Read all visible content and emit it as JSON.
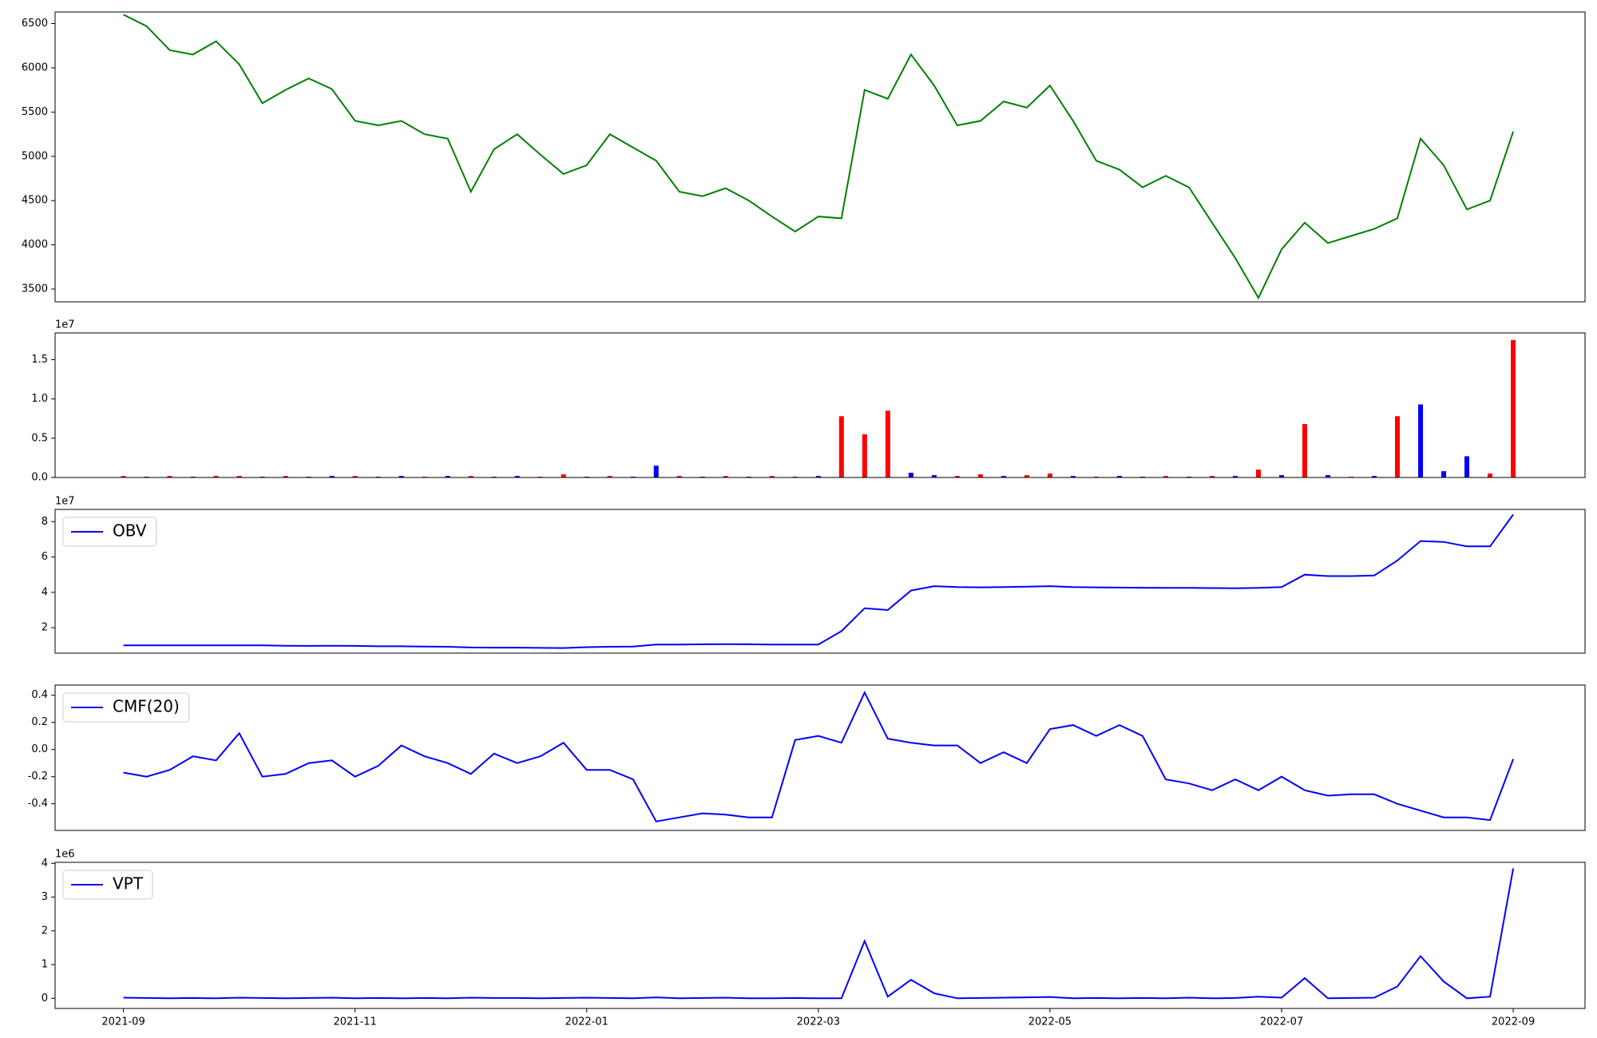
{
  "chart_data": [
    {
      "type": "line",
      "color": "green",
      "x": [
        0,
        0.2,
        0.4,
        0.6,
        0.8,
        1,
        1.2,
        1.4,
        1.6,
        1.8,
        2,
        2.2,
        2.4,
        2.6,
        2.8,
        3,
        3.2,
        3.4,
        3.6,
        3.8,
        4,
        4.2,
        4.4,
        4.6,
        4.8,
        5,
        5.2,
        5.4,
        5.6,
        5.8,
        6,
        6.2,
        6.4,
        6.6,
        6.8,
        7,
        7.2,
        7.4,
        7.6,
        7.8,
        8,
        8.2,
        8.4,
        8.6,
        8.8,
        9,
        9.2,
        9.4,
        9.6,
        9.8,
        10,
        10.2,
        10.4,
        10.6,
        10.8,
        11,
        11.2,
        11.4,
        11.6,
        11.8,
        12
      ],
      "values": [
        6600,
        6470,
        6200,
        6150,
        6300,
        6040,
        5600,
        5750,
        5880,
        5760,
        5400,
        5350,
        5400,
        5250,
        5200,
        4600,
        5080,
        5250,
        5020,
        4800,
        4900,
        5250,
        5100,
        4950,
        4600,
        4550,
        4640,
        4500,
        4320,
        4150,
        4320,
        4300,
        5750,
        5650,
        6150,
        5800,
        5350,
        5400,
        5620,
        5550,
        5800,
        5400,
        4950,
        4850,
        4650,
        4780,
        4650,
        4250,
        3850,
        3400,
        3950,
        4250,
        4020,
        4100,
        4180,
        4300,
        5200,
        4900,
        4400,
        4500,
        5280
      ],
      "xlim": [
        -0.59,
        12.62
      ],
      "ylim": [
        3356,
        6631
      ],
      "yticks": [
        3500,
        4000,
        4500,
        5000,
        5500,
        6000,
        6500
      ]
    },
    {
      "type": "bar",
      "offset_label": "1e7",
      "x": [
        0,
        0.2,
        0.4,
        0.6,
        0.8,
        1,
        1.2,
        1.4,
        1.6,
        1.8,
        2,
        2.2,
        2.4,
        2.6,
        2.8,
        3,
        3.2,
        3.4,
        3.6,
        3.8,
        4,
        4.2,
        4.4,
        4.6,
        4.8,
        5,
        5.2,
        5.4,
        5.6,
        5.8,
        6,
        6.2,
        6.4,
        6.6,
        6.8,
        7,
        7.2,
        7.4,
        7.6,
        7.8,
        8,
        8.2,
        8.4,
        8.6,
        8.8,
        9,
        9.2,
        9.4,
        9.6,
        9.8,
        10,
        10.2,
        10.4,
        10.6,
        10.8,
        11,
        11.2,
        11.4,
        11.6,
        11.8,
        12
      ],
      "values": [
        0.02,
        0.01,
        0.02,
        0.01,
        0.02,
        0.02,
        0.01,
        0.02,
        0.01,
        0.02,
        0.02,
        0.01,
        0.02,
        0.01,
        0.02,
        0.02,
        0.01,
        0.02,
        0.01,
        0.04,
        0.01,
        0.02,
        0.01,
        0.15,
        0.02,
        0.01,
        0.02,
        0.01,
        0.02,
        0.01,
        0.02,
        0.78,
        0.55,
        0.85,
        0.06,
        0.03,
        0.02,
        0.04,
        0.02,
        0.03,
        0.05,
        0.02,
        0.01,
        0.02,
        0.01,
        0.02,
        0.01,
        0.02,
        0.02,
        0.1,
        0.03,
        0.68,
        0.03,
        0.01,
        0.02,
        0.78,
        0.93,
        0.08,
        0.27,
        0.05,
        1.75
      ],
      "bar_colors": [
        "red",
        "blue",
        "red",
        "blue",
        "red",
        "red",
        "blue",
        "red",
        "blue",
        "blue",
        "red",
        "blue",
        "blue",
        "red",
        "blue",
        "red",
        "blue",
        "blue",
        "red",
        "red",
        "blue",
        "red",
        "blue",
        "blue",
        "red",
        "blue",
        "red",
        "blue",
        "red",
        "blue",
        "blue",
        "red",
        "red",
        "red",
        "blue",
        "blue",
        "red",
        "red",
        "blue",
        "red",
        "red",
        "blue",
        "red",
        "blue",
        "blue",
        "red",
        "blue",
        "red",
        "blue",
        "red",
        "blue",
        "red",
        "blue",
        "red",
        "blue",
        "red",
        "blue",
        "blue",
        "blue",
        "red",
        "red"
      ],
      "xlim": [
        -0.59,
        12.62
      ],
      "ylim": [
        0,
        1.84
      ],
      "yticks": [
        {
          "value": 0,
          "label": "0.0"
        },
        0.5,
        {
          "value": 1,
          "label": "1.0"
        },
        1.5
      ]
    },
    {
      "type": "line",
      "offset_label": "1e7",
      "legend": "upper left",
      "x": [
        0,
        0.2,
        0.4,
        0.6,
        0.8,
        1,
        1.2,
        1.4,
        1.6,
        1.8,
        2,
        2.2,
        2.4,
        2.6,
        2.8,
        3,
        3.2,
        3.4,
        3.6,
        3.8,
        4,
        4.2,
        4.4,
        4.6,
        4.8,
        5,
        5.2,
        5.4,
        5.6,
        5.8,
        6,
        6.2,
        6.4,
        6.6,
        6.8,
        7,
        7.2,
        7.4,
        7.6,
        7.8,
        8,
        8.2,
        8.4,
        8.6,
        8.8,
        9,
        9.2,
        9.4,
        9.6,
        9.8,
        10,
        10.2,
        10.4,
        10.6,
        10.8,
        11,
        11.2,
        11.4,
        11.6,
        11.8,
        12
      ],
      "series": [
        {
          "name": "OBV",
          "color": "blue",
          "values": [
            1.0,
            1.0,
            1.0,
            1.0,
            1.0,
            1.0,
            1.0,
            0.98,
            0.97,
            0.98,
            0.97,
            0.95,
            0.95,
            0.93,
            0.92,
            0.88,
            0.87,
            0.87,
            0.86,
            0.85,
            0.9,
            0.92,
            0.93,
            1.05,
            1.05,
            1.06,
            1.07,
            1.06,
            1.05,
            1.05,
            1.05,
            1.8,
            3.1,
            3.0,
            4.1,
            4.35,
            4.3,
            4.28,
            4.3,
            4.32,
            4.35,
            4.3,
            4.28,
            4.27,
            4.26,
            4.25,
            4.25,
            4.24,
            4.23,
            4.25,
            4.3,
            5.0,
            4.92,
            4.92,
            4.95,
            5.8,
            6.9,
            6.85,
            6.6,
            6.6,
            8.4
          ]
        }
      ],
      "xlim": [
        -0.59,
        12.62
      ],
      "ylim": [
        0.56,
        8.69
      ],
      "yticks": [
        2,
        4,
        6,
        8
      ]
    },
    {
      "type": "line",
      "legend": "upper left",
      "x": [
        0,
        0.2,
        0.4,
        0.6,
        0.8,
        1,
        1.2,
        1.4,
        1.6,
        1.8,
        2,
        2.2,
        2.4,
        2.6,
        2.8,
        3,
        3.2,
        3.4,
        3.6,
        3.8,
        4,
        4.2,
        4.4,
        4.6,
        4.8,
        5,
        5.2,
        5.4,
        5.6,
        5.8,
        6,
        6.2,
        6.4,
        6.6,
        6.8,
        7,
        7.2,
        7.4,
        7.6,
        7.8,
        8,
        8.2,
        8.4,
        8.6,
        8.8,
        9,
        9.2,
        9.4,
        9.6,
        9.8,
        10,
        10.2,
        10.4,
        10.6,
        10.8,
        11,
        11.2,
        11.4,
        11.6,
        11.8,
        12
      ],
      "series": [
        {
          "name": "CMF(20)",
          "color": "blue",
          "values": [
            -0.17,
            -0.2,
            -0.15,
            -0.05,
            -0.08,
            0.12,
            -0.2,
            -0.18,
            -0.1,
            -0.08,
            -0.2,
            -0.12,
            0.03,
            -0.05,
            -0.1,
            -0.18,
            -0.03,
            -0.1,
            -0.05,
            0.05,
            -0.15,
            -0.15,
            -0.22,
            -0.53,
            -0.5,
            -0.47,
            -0.48,
            -0.5,
            -0.5,
            0.07,
            0.1,
            0.05,
            0.42,
            0.08,
            0.05,
            0.03,
            0.03,
            -0.1,
            -0.02,
            -0.1,
            0.15,
            0.18,
            0.1,
            0.18,
            0.1,
            -0.22,
            -0.25,
            -0.3,
            -0.22,
            -0.3,
            -0.2,
            -0.3,
            -0.34,
            -0.33,
            -0.33,
            -0.4,
            -0.45,
            -0.5,
            -0.5,
            -0.52,
            -0.07
          ]
        }
      ],
      "xlim": [
        -0.59,
        12.62
      ],
      "ylim": [
        -0.596,
        0.475
      ],
      "yticks": [
        -0.4,
        -0.2,
        {
          "value": 0,
          "label": "0.0"
        },
        0.2,
        0.4
      ]
    },
    {
      "type": "line",
      "offset_label": "1e6",
      "legend": "upper left",
      "x": [
        0,
        0.2,
        0.4,
        0.6,
        0.8,
        1,
        1.2,
        1.4,
        1.6,
        1.8,
        2,
        2.2,
        2.4,
        2.6,
        2.8,
        3,
        3.2,
        3.4,
        3.6,
        3.8,
        4,
        4.2,
        4.4,
        4.6,
        4.8,
        5,
        5.2,
        5.4,
        5.6,
        5.8,
        6,
        6.2,
        6.4,
        6.6,
        6.8,
        7,
        7.2,
        7.4,
        7.6,
        7.8,
        8,
        8.2,
        8.4,
        8.6,
        8.8,
        9,
        9.2,
        9.4,
        9.6,
        9.8,
        10,
        10.2,
        10.4,
        10.6,
        10.8,
        11,
        11.2,
        11.4,
        11.6,
        11.8,
        12
      ],
      "series": [
        {
          "name": "VPT",
          "color": "blue",
          "values": [
            0.02,
            0.01,
            0.0,
            0.01,
            0.0,
            0.02,
            0.01,
            0.0,
            0.01,
            0.02,
            0.0,
            0.01,
            0.0,
            0.01,
            0.0,
            0.02,
            0.01,
            0.01,
            0.0,
            0.01,
            0.02,
            0.01,
            0.0,
            0.03,
            0.0,
            0.01,
            0.02,
            0.0,
            0.0,
            0.01,
            0.0,
            0.0,
            1.7,
            0.05,
            0.55,
            0.15,
            0.0,
            0.01,
            0.02,
            0.03,
            0.04,
            0.0,
            0.01,
            0.0,
            0.01,
            0.0,
            0.02,
            0.0,
            0.01,
            0.05,
            0.02,
            0.6,
            0.0,
            0.01,
            0.02,
            0.35,
            1.25,
            0.5,
            0.0,
            0.05,
            3.85
          ]
        }
      ],
      "xlim": [
        -0.59,
        12.62
      ],
      "ylim": [
        -0.3,
        4.03
      ],
      "yticks": [
        0,
        1,
        2,
        3,
        4
      ],
      "xticks": [
        {
          "value": 0,
          "label": "2021-09"
        },
        {
          "value": 2,
          "label": "2021-11"
        },
        {
          "value": 4,
          "label": "2022-01"
        },
        {
          "value": 6,
          "label": "2022-03"
        },
        {
          "value": 8,
          "label": "2022-05"
        },
        {
          "value": 10,
          "label": "2022-07"
        },
        {
          "value": 12,
          "label": "2022-09"
        }
      ]
    }
  ]
}
